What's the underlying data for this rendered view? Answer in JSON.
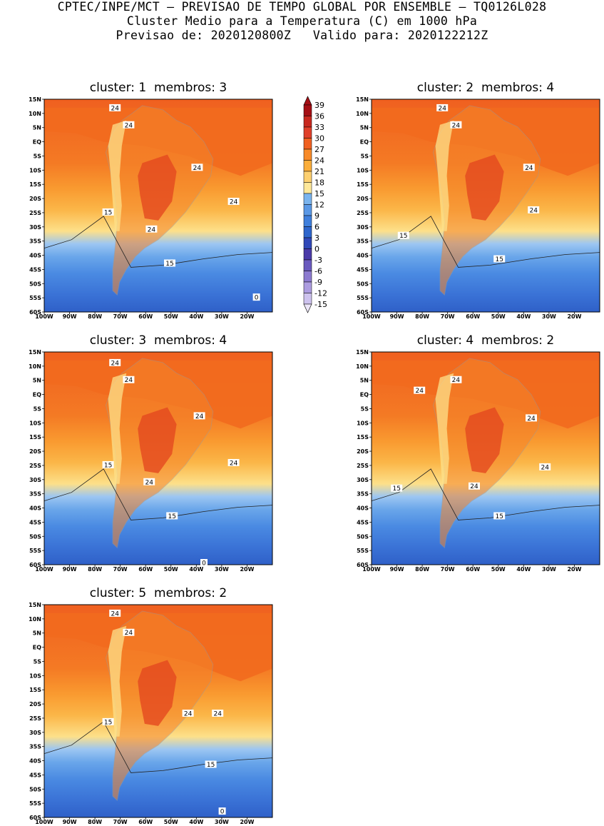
{
  "header": {
    "line1": "CPTEC/INPE/MCT – PREVISAO DE TEMPO GLOBAL POR ENSEMBLE – TQ0126L028",
    "line2": "Cluster Medio para a Temperatura (C) em 1000 hPa",
    "line3": "Previsao de: 2020120800Z   Valido para: 2020122212Z"
  },
  "panels": [
    {
      "title": "cluster: 1  membros: 3",
      "contour_labels": [
        "24",
        "24",
        "24",
        "24",
        "24",
        "15",
        "15",
        "0"
      ]
    },
    {
      "title": "cluster: 2  membros: 4",
      "contour_labels": [
        "24",
        "24",
        "24",
        "24",
        "15",
        "15"
      ]
    },
    {
      "title": "cluster: 3  membros: 4",
      "contour_labels": [
        "24",
        "24",
        "24",
        "24",
        "24",
        "15",
        "15",
        "0"
      ]
    },
    {
      "title": "cluster: 4  membros: 2",
      "contour_labels": [
        "24",
        "24",
        "24",
        "24",
        "24",
        "15",
        "15"
      ]
    },
    {
      "title": "cluster: 5  membros: 2",
      "contour_labels": [
        "24",
        "24",
        "24",
        "24",
        "15",
        "15",
        "0"
      ]
    }
  ],
  "lat_ticks": [
    "15N",
    "10N",
    "5N",
    "EQ",
    "5S",
    "10S",
    "15S",
    "20S",
    "25S",
    "30S",
    "35S",
    "40S",
    "45S",
    "50S",
    "55S",
    "60S"
  ],
  "lon_ticks": [
    "100W",
    "90W",
    "80W",
    "70W",
    "60W",
    "50W",
    "40W",
    "30W",
    "20W"
  ],
  "colorbar": {
    "labels": [
      "39",
      "36",
      "33",
      "30",
      "27",
      "24",
      "21",
      "18",
      "15",
      "12",
      "9",
      "6",
      "3",
      "0",
      "-3",
      "-6",
      "-9",
      "-12",
      "-15"
    ],
    "colors": [
      "#a50f15",
      "#c8281f",
      "#e0402a",
      "#f06020",
      "#f88a28",
      "#fbae3a",
      "#fdd070",
      "#fee89a",
      "#7ab4ee",
      "#5a98e6",
      "#3f7fdc",
      "#2e66cc",
      "#3048b8",
      "#4a3aa8",
      "#6a5abf",
      "#8c7ad0",
      "#ac9ce0",
      "#cdc2ee"
    ]
  }
}
